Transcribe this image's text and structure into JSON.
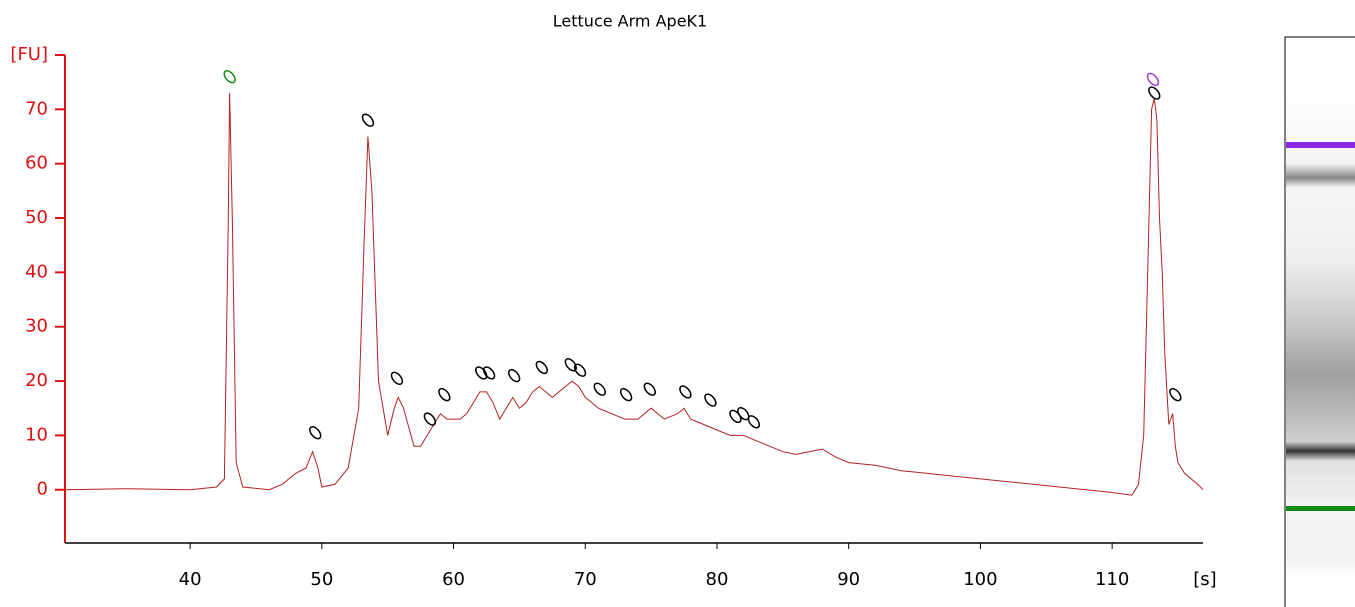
{
  "chart_data": {
    "type": "line",
    "title": "Lettuce Arm ApeK1",
    "y_label": "[FU]",
    "x_label": "[s]",
    "xlim": [
      30.5,
      116.9
    ],
    "ylim": [
      -9.8,
      80
    ],
    "xticks": [
      40,
      50,
      60,
      70,
      80,
      90,
      100,
      110
    ],
    "yticks": [
      0,
      10,
      20,
      30,
      40,
      50,
      60,
      70
    ],
    "color": "#b22222",
    "axis_color": "#dd1111",
    "x": [
      30.5,
      35,
      40,
      42,
      42.6,
      42.9,
      43.0,
      43.2,
      43.5,
      44,
      46,
      47,
      48,
      48.8,
      49.3,
      49.7,
      50,
      51,
      52,
      52.8,
      53.2,
      53.5,
      53.8,
      54.3,
      55,
      55.5,
      55.8,
      56.2,
      57,
      57.5,
      58,
      58.5,
      59,
      59.5,
      60,
      60.5,
      61,
      61.5,
      62,
      62.5,
      63,
      63.5,
      64,
      64.5,
      65,
      65.5,
      66,
      66.5,
      67,
      67.5,
      68,
      68.5,
      69,
      69.5,
      70,
      70.5,
      71,
      72,
      73,
      74,
      75,
      76,
      77,
      77.5,
      78,
      79,
      80,
      81,
      82,
      83,
      84,
      85,
      86,
      87,
      88,
      89,
      90,
      92,
      94,
      96,
      98,
      100,
      102,
      104,
      106,
      108,
      110,
      111.5,
      112,
      112.4,
      112.7,
      113,
      113.2,
      113.4,
      113.6,
      113.8,
      114,
      114.3,
      114.6,
      114.8,
      115,
      115.5,
      116,
      116.5,
      116.9
    ],
    "values": [
      0,
      0.2,
      0,
      0.5,
      2,
      50,
      73,
      50,
      5,
      0.5,
      0,
      1,
      3,
      4,
      7,
      4,
      0.5,
      1,
      4,
      15,
      45,
      65,
      55,
      20,
      10,
      15,
      17,
      15,
      8,
      8,
      10,
      12,
      14,
      13,
      13,
      13,
      14,
      16,
      18,
      18,
      16,
      13,
      15,
      17,
      15,
      16,
      18,
      19,
      18,
      17,
      18,
      19,
      20,
      19,
      17,
      16,
      15,
      14,
      13,
      13,
      15,
      13,
      14,
      15,
      13,
      12,
      11,
      10,
      10,
      9,
      8,
      7,
      6.5,
      7,
      7.5,
      6,
      5,
      4.5,
      3.5,
      3,
      2.5,
      2,
      1.5,
      1,
      0.5,
      0,
      -0.5,
      -1,
      1,
      10,
      40,
      70,
      72,
      68,
      50,
      40,
      25,
      12,
      14,
      8,
      5,
      3,
      2,
      1,
      0
    ],
    "peak_markers": {
      "x": [
        43,
        49.5,
        53.5,
        55.7,
        58.2,
        59.3,
        62.1,
        62.7,
        64.6,
        66.7,
        68.9,
        69.6,
        71.1,
        73.1,
        74.9,
        77.6,
        79.5,
        81.4,
        82,
        82.8,
        113.1,
        113.2,
        114.8
      ],
      "y": [
        76,
        10.5,
        68,
        20.5,
        13,
        17.5,
        21.5,
        21.5,
        21,
        22.5,
        23,
        22,
        18.5,
        17.5,
        18.5,
        18,
        16.5,
        13.5,
        14,
        12.5,
        75.5,
        73,
        17.5
      ],
      "colors": [
        "#1a8a1a",
        "#000000",
        "#000000",
        "#000000",
        "#000000",
        "#000000",
        "#000000",
        "#000000",
        "#000000",
        "#000000",
        "#000000",
        "#000000",
        "#000000",
        "#000000",
        "#000000",
        "#000000",
        "#000000",
        "#000000",
        "#000000",
        "#000000",
        "#a040d0",
        "#000000",
        "#000000"
      ]
    }
  }
}
